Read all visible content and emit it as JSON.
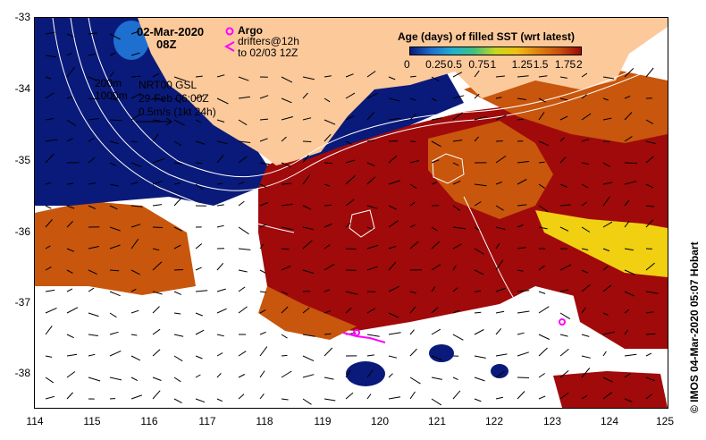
{
  "header": {
    "date": "02-Mar-2020",
    "time": "08Z"
  },
  "legend": {
    "argo": "Argo",
    "drifters": "drifters@12h",
    "drifters_to": "to 02/03 12Z",
    "isobath_200": "200m",
    "isobath_1000": "1000m",
    "product": "NRT00 GSL",
    "product_date": "29-Feb 06:00Z",
    "velocity_scale": "0.5m/s (1kt 24h)"
  },
  "colorbar": {
    "title": "Age (days) of filled SST (wrt latest)",
    "tick_labels": [
      "0",
      "0.25",
      "0.5",
      "0.75",
      "1",
      "1.25",
      "1.5",
      "1.75",
      "2"
    ],
    "colors": [
      "#0a1a7a",
      "#1e6fd0",
      "#20b0d0",
      "#40c080",
      "#c8d820",
      "#f0c010",
      "#e08010",
      "#c85010",
      "#9a0a0a"
    ]
  },
  "axes": {
    "lat_labels": [
      "-33",
      "-34",
      "-35",
      "-36",
      "-37",
      "-38"
    ],
    "lon_labels": [
      "114",
      "115",
      "116",
      "117",
      "118",
      "119",
      "120",
      "121",
      "122",
      "123",
      "124",
      "125"
    ]
  },
  "colors": {
    "land": "#fcc99b",
    "fresh": "#0a1a7a",
    "mid": "#c8560c",
    "old": "#a00a0a",
    "argo": "#ff00ff"
  },
  "credit": "©  IMOS 04-Mar-2020 05:07 Hobart"
}
